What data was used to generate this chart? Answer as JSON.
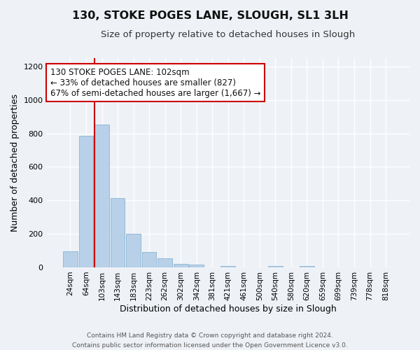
{
  "title": "130, STOKE POGES LANE, SLOUGH, SL1 3LH",
  "subtitle": "Size of property relative to detached houses in Slough",
  "xlabel": "Distribution of detached houses by size in Slough",
  "ylabel": "Number of detached properties",
  "bar_labels": [
    "24sqm",
    "64sqm",
    "103sqm",
    "143sqm",
    "183sqm",
    "223sqm",
    "262sqm",
    "302sqm",
    "342sqm",
    "381sqm",
    "421sqm",
    "461sqm",
    "500sqm",
    "540sqm",
    "580sqm",
    "620sqm",
    "659sqm",
    "699sqm",
    "739sqm",
    "778sqm",
    "818sqm"
  ],
  "bar_values": [
    95,
    785,
    855,
    415,
    200,
    90,
    55,
    20,
    15,
    0,
    10,
    0,
    0,
    10,
    0,
    10,
    0,
    0,
    0,
    0,
    0
  ],
  "bar_color": "#b8d0e8",
  "bar_edge_color": "#8ab4d4",
  "property_line_index": 2,
  "property_line_color": "#cc0000",
  "ylim": [
    0,
    1250
  ],
  "yticks": [
    0,
    200,
    400,
    600,
    800,
    1000,
    1200
  ],
  "annotation_text": "130 STOKE POGES LANE: 102sqm\n← 33% of detached houses are smaller (827)\n67% of semi-detached houses are larger (1,667) →",
  "annotation_box_color": "#cc0000",
  "footer_line1": "Contains HM Land Registry data © Crown copyright and database right 2024.",
  "footer_line2": "Contains public sector information licensed under the Open Government Licence v3.0.",
  "bg_color": "#eef2f7",
  "plot_bg_color": "#eef2f7",
  "title_fontsize": 11.5,
  "subtitle_fontsize": 9.5,
  "axis_label_fontsize": 9,
  "tick_fontsize": 7.5,
  "annotation_fontsize": 8.5,
  "footer_fontsize": 6.5
}
